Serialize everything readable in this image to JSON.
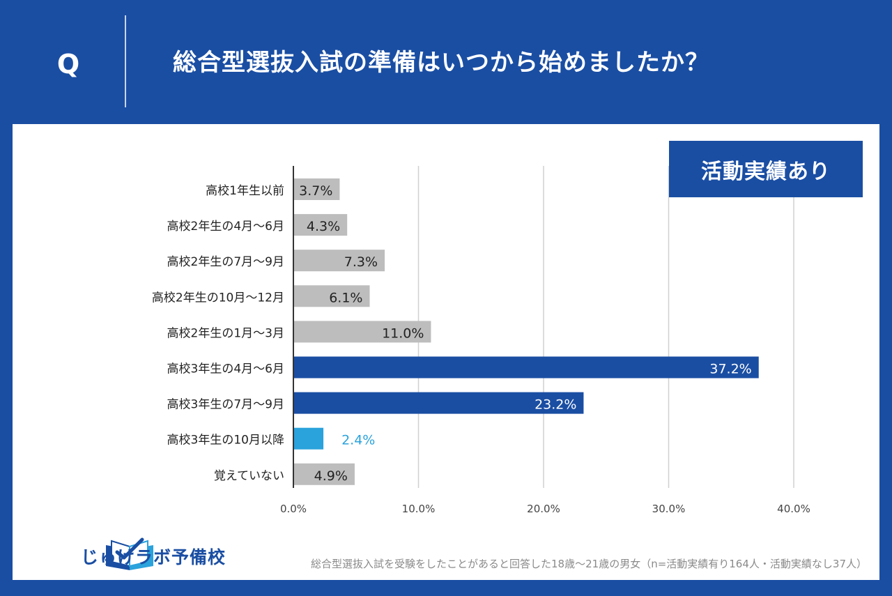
{
  "header": {
    "q_label": "Q",
    "question": "総合型選抜入試の準備はいつから始めましたか？"
  },
  "badge": {
    "label": "活動実績あり"
  },
  "colors": {
    "frame": "#1a4ea3",
    "bar_default": "#bdbdbd",
    "bar_highlight": "#1a4ea3",
    "bar_accent": "#2aa2dc",
    "accent_label": "#2aa2dc"
  },
  "chart_data": {
    "type": "bar",
    "orientation": "horizontal",
    "categories": [
      "高校1年生以前",
      "高校2年生の4月～6月",
      "高校2年生の7月～9月",
      "高校2年生の10月～12月",
      "高校2年生の1月～3月",
      "高校3年生の4月～6月",
      "高校3年生の7月～9月",
      "高校3年生の10月以降",
      "覚えていない"
    ],
    "values": [
      3.7,
      4.3,
      7.3,
      6.1,
      11.0,
      37.2,
      23.2,
      2.4,
      4.9
    ],
    "value_labels": [
      "3.7%",
      "4.3%",
      "7.3%",
      "6.1%",
      "11.0%",
      "37.2%",
      "23.2%",
      "2.4%",
      "4.9%"
    ],
    "bar_styles": [
      "default",
      "default",
      "default",
      "default",
      "default",
      "highlight",
      "highlight",
      "accent",
      "default"
    ],
    "xlim": [
      0,
      40
    ],
    "xticks": [
      "0.0%",
      "10.0%",
      "20.0%",
      "30.0%",
      "40.0%"
    ],
    "grid": true,
    "legend": "none"
  },
  "logo": {
    "text": "じゅけラボ予備校",
    "icon": "open-book-icon"
  },
  "footnote": "総合型選抜入試を受験をしたことがあると回答した18歳～21歳の男女（n=活動実績有り164人・活動実績なし37人）"
}
